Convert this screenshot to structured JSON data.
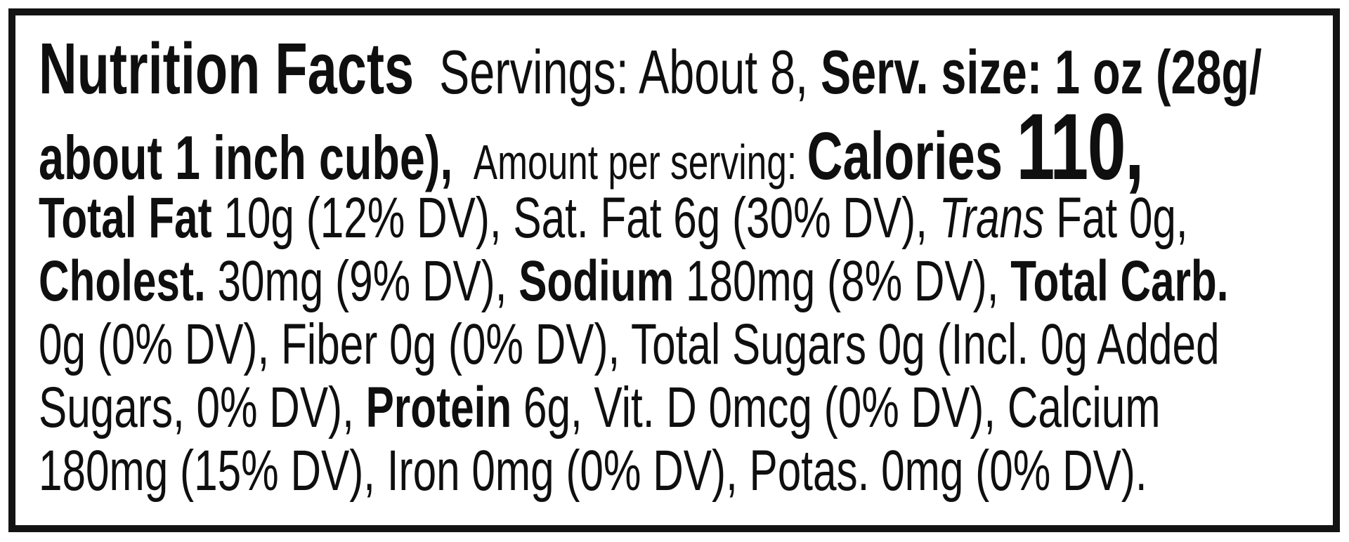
{
  "label": {
    "border_color": "#131313",
    "background_color": "#ffffff",
    "text_color": "#0f0f0f",
    "lines": [
      {
        "segments": [
          {
            "style": "title",
            "t": "Nutrition Facts"
          },
          {
            "style": "r1",
            "t": "  Servings: About 8, "
          },
          {
            "style": "b1",
            "t": "Serv. size: 1 oz (28g/"
          }
        ]
      },
      {
        "segments": [
          {
            "style": "b1",
            "t": "about 1 inch cube), "
          },
          {
            "style": "amount",
            "t": " Amount per serving: "
          },
          {
            "style": "cal",
            "t": "Calories "
          },
          {
            "style": "calval",
            "t": "110,"
          }
        ]
      },
      {
        "segments": [
          {
            "style": "b",
            "t": "Total Fat "
          },
          {
            "style": "r",
            "t": "10g (12% DV), Sat. Fat 6g (30% DV), "
          },
          {
            "style": "i",
            "t": "Trans"
          },
          {
            "style": "r",
            "t": " Fat 0g,"
          }
        ]
      },
      {
        "segments": [
          {
            "style": "b",
            "t": "Cholest. "
          },
          {
            "style": "r",
            "t": "30mg (9% DV), "
          },
          {
            "style": "b",
            "t": "Sodium "
          },
          {
            "style": "r",
            "t": "180mg (8% DV), "
          },
          {
            "style": "b",
            "t": "Total Carb."
          }
        ]
      },
      {
        "segments": [
          {
            "style": "r",
            "t": "0g (0% DV), Fiber 0g (0% DV), Total Sugars 0g (Incl. 0g Added"
          }
        ]
      },
      {
        "segments": [
          {
            "style": "r",
            "t": "Sugars, 0% DV), "
          },
          {
            "style": "b",
            "t": "Protein "
          },
          {
            "style": "r",
            "t": "6g, Vit. D 0mcg (0% DV), Calcium"
          }
        ]
      },
      {
        "segments": [
          {
            "style": "r",
            "t": "180mg (15% DV), Iron 0mg (0% DV), Potas. 0mg (0% DV)."
          }
        ]
      }
    ],
    "facts": {
      "title": "Nutrition Facts",
      "servings": "About 8",
      "serving_size": "1 oz (28g/about 1 inch cube)",
      "amount_per_serving_label": "Amount per serving:",
      "calories": "110",
      "nutrients": [
        {
          "name": "Total Fat",
          "amount": "10g",
          "daily_value": "12% DV"
        },
        {
          "name": "Sat. Fat",
          "amount": "6g",
          "daily_value": "30% DV"
        },
        {
          "name": "Trans Fat",
          "amount": "0g",
          "daily_value": ""
        },
        {
          "name": "Cholest.",
          "amount": "30mg",
          "daily_value": "9% DV"
        },
        {
          "name": "Sodium",
          "amount": "180mg",
          "daily_value": "8% DV"
        },
        {
          "name": "Total Carb.",
          "amount": "0g",
          "daily_value": "0% DV"
        },
        {
          "name": "Fiber",
          "amount": "0g",
          "daily_value": "0% DV"
        },
        {
          "name": "Total Sugars",
          "amount": "0g",
          "daily_value": ""
        },
        {
          "name": "Incl. Added Sugars",
          "amount": "0g",
          "daily_value": "0% DV"
        },
        {
          "name": "Protein",
          "amount": "6g",
          "daily_value": ""
        },
        {
          "name": "Vit. D",
          "amount": "0mcg",
          "daily_value": "0% DV"
        },
        {
          "name": "Calcium",
          "amount": "180mg",
          "daily_value": "15% DV"
        },
        {
          "name": "Iron",
          "amount": "0mg",
          "daily_value": "0% DV"
        },
        {
          "name": "Potas.",
          "amount": "0mg",
          "daily_value": "0% DV"
        }
      ]
    }
  }
}
